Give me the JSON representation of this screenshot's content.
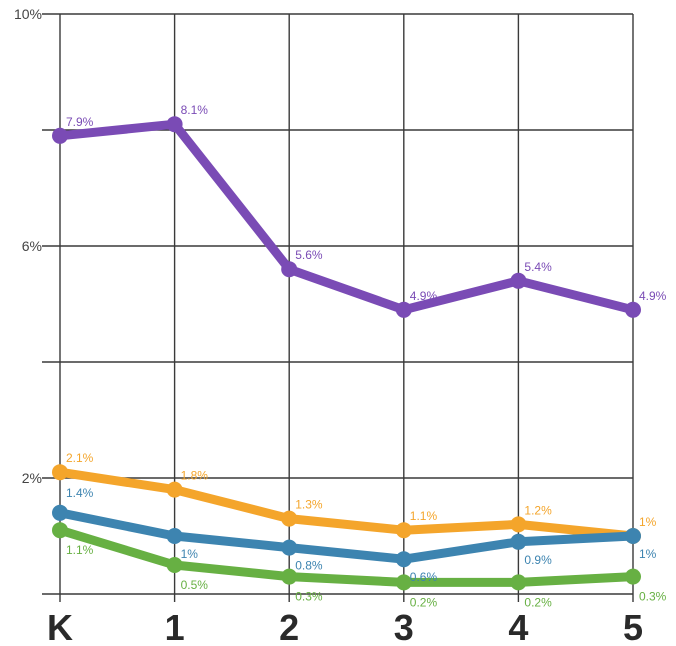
{
  "chart_data": {
    "type": "line",
    "categories": [
      "K",
      "1",
      "2",
      "3",
      "4",
      "5"
    ],
    "y_ticks": [
      {
        "value": 10,
        "label": "10%"
      },
      {
        "value": 6,
        "label": "6%"
      },
      {
        "value": 2,
        "label": "2%"
      }
    ],
    "ylim": [
      0,
      10
    ],
    "grid": true,
    "series": [
      {
        "color": "#7a4bb5",
        "values": [
          7.9,
          8.1,
          5.6,
          4.9,
          5.4,
          4.9
        ],
        "labels": [
          "7.9%",
          "8.1%",
          "5.6%",
          "4.9%",
          "5.4%",
          "4.9%"
        ]
      },
      {
        "color": "#f4a52b",
        "values": [
          2.1,
          1.8,
          1.3,
          1.1,
          1.2,
          1.0
        ],
        "labels": [
          "2.1%",
          "1.8%",
          "1.3%",
          "1.1%",
          "1.2%",
          "1%"
        ]
      },
      {
        "color": "#3d84b0",
        "values": [
          1.4,
          1.0,
          0.8,
          0.6,
          0.9,
          1.0
        ],
        "labels": [
          "1.4%",
          "1%",
          "0.8%",
          "0.6%",
          "0.9%",
          "1%"
        ]
      },
      {
        "color": "#67b043",
        "values": [
          1.1,
          0.5,
          0.3,
          0.2,
          0.2,
          0.3
        ],
        "labels": [
          "1.1%",
          "0.5%",
          "0.3%",
          "0.2%",
          "0.2%",
          "0.3%"
        ]
      }
    ]
  }
}
